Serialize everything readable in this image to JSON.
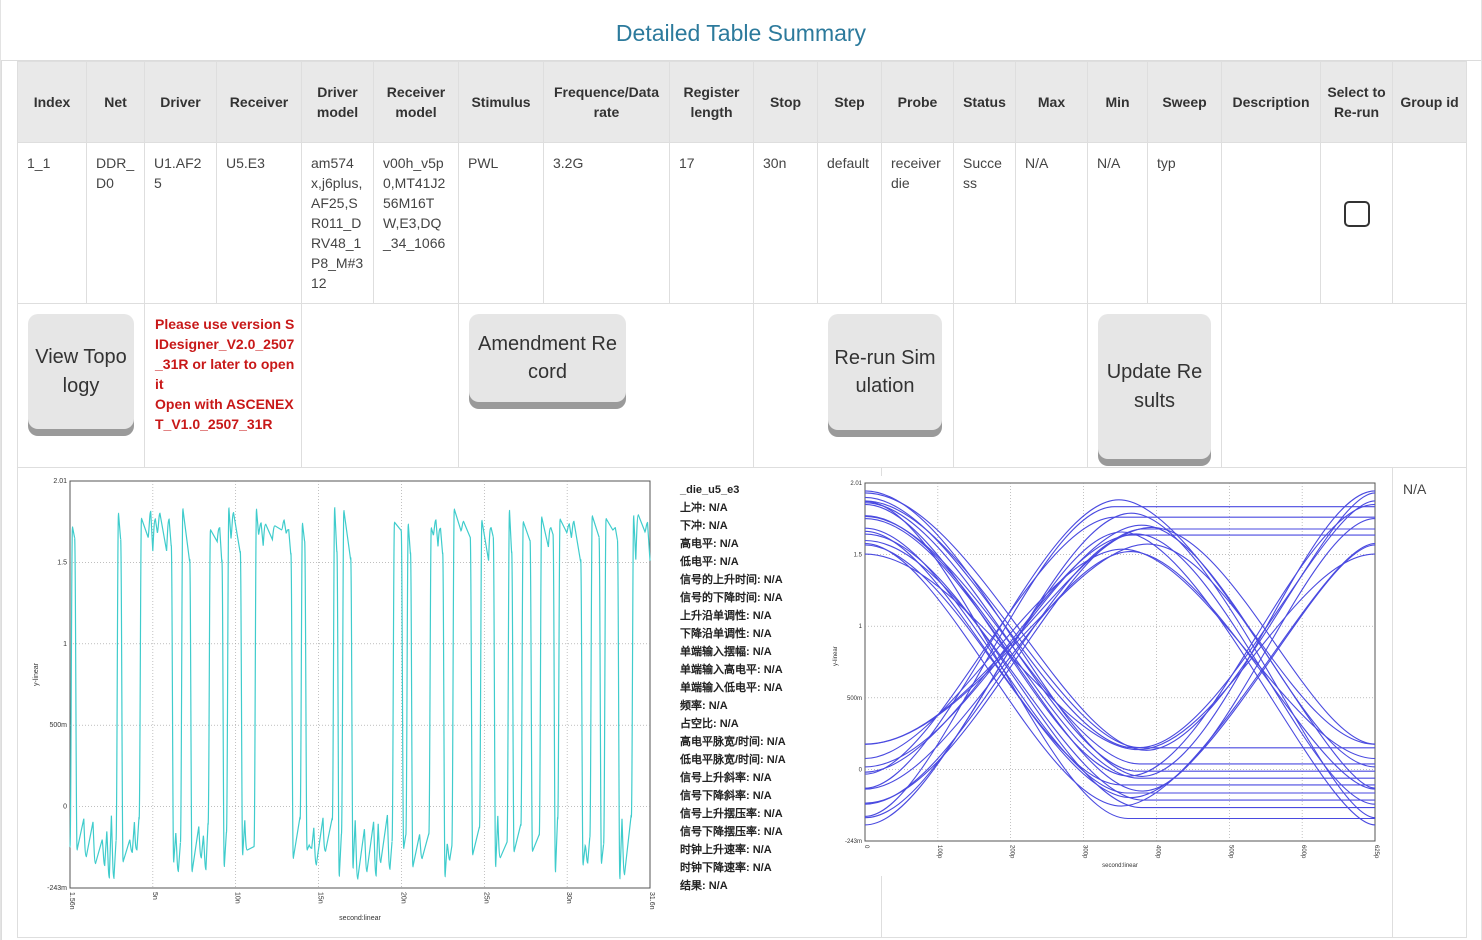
{
  "page": {
    "title": "Detailed Table Summary"
  },
  "table": {
    "headers": [
      "Index",
      "Net",
      "Driver",
      "Receiver",
      "Driver model",
      "Receiver model",
      "Stimulus",
      "Frequence/Data rate",
      "Register length",
      "Stop",
      "Step",
      "Probe",
      "Status",
      "Max",
      "Min",
      "Sweep",
      "Description",
      "Select to Re-run",
      "Group id"
    ],
    "row": {
      "index": "1_1",
      "net": "DDR_D0",
      "driver": "U1.AF25",
      "receiver": "U5.E3",
      "driver_model": "am574x,j6plus,AF25,SR011_DRV48_1P8_M#312",
      "receiver_model": "v00h_v5p0,MT41J256M16TW,E3,DQ_34_1066",
      "stimulus": "PWL",
      "frequence": "3.2G",
      "register_length": "17",
      "stop": "30n",
      "step": "default",
      "probe": "receiver die",
      "status": "Success",
      "max": "N/A",
      "min": "N/A",
      "sweep": "typ",
      "description": "",
      "select_rerun": false,
      "group_id": ""
    }
  },
  "actions": {
    "view_topology": "View Topology",
    "warning": "Please use version SIDesigner_V2.0_2507_31R or later to open it\nOpen with ASCENEXT_V1.0_2507_31R",
    "amendment_record": "Amendment Record",
    "rerun_simulation": "Re-run Simulation",
    "update_results": "Update Results"
  },
  "waveform": {
    "line_color": "#3fcccc",
    "ylabel": "y-linear",
    "xlabel": "second:linear",
    "y_ticks": [
      "2.01",
      "1.5",
      "1",
      "500m",
      "0",
      "-243m"
    ],
    "x_ticks": [
      "1.56n",
      "5n",
      "10n",
      "15n",
      "20n",
      "25n",
      "30n",
      "31.6n"
    ]
  },
  "measurements": {
    "title": "_die_u5_e3",
    "items": [
      "上冲: N/A",
      "下冲: N/A",
      "高电平: N/A",
      "低电平: N/A",
      "信号的上升时间: N/A",
      "信号的下降时间: N/A",
      "上升沿单调性: N/A",
      "下降沿单调性: N/A",
      "单端输入摆幅: N/A",
      "单端输入高电平: N/A",
      "单端输入低电平: N/A",
      "频率: N/A",
      "占空比: N/A",
      "高电平脉宽/时间: N/A",
      "低电平脉宽/时间: N/A",
      "信号上升斜率: N/A",
      "信号下降斜率: N/A",
      "信号上升摆压率: N/A",
      "信号下降摆压率: N/A",
      "时钟上升速率: N/A",
      "时钟下降速率: N/A",
      "结果: N/A"
    ]
  },
  "eye": {
    "line_color": "#4a4ae0",
    "ylabel": "y-linear",
    "xlabel": "second:linear",
    "y_ticks": [
      "2.01",
      "1.5",
      "1",
      "500m",
      "0",
      "-243m"
    ],
    "x_ticks": [
      "0",
      "100p",
      "200p",
      "300p",
      "400p",
      "500p",
      "600p",
      "625p"
    ]
  },
  "group_value": "N/A"
}
